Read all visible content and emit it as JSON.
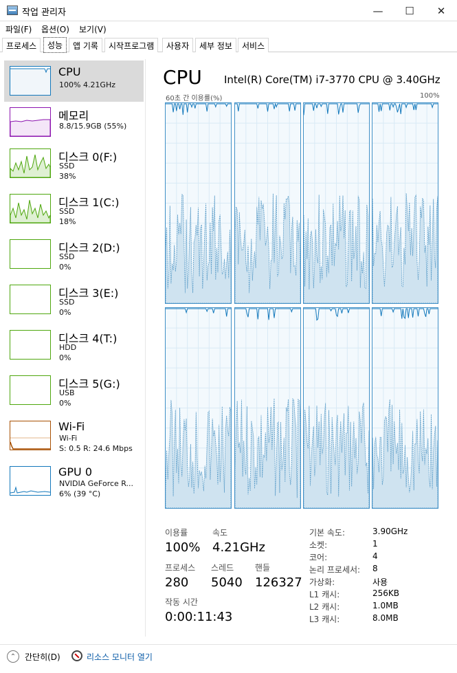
{
  "window": {
    "title": "작업 관리자"
  },
  "menu": [
    "파일(F)",
    "옵션(O)",
    "보기(V)"
  ],
  "tabs": [
    "프로세스",
    "성능",
    "앱 기록",
    "시작프로그램",
    "사용자",
    "세부 정보",
    "서비스"
  ],
  "active_tab": "성능",
  "sidebar": {
    "cpu": {
      "title": "CPU",
      "sub1": "100%  4.21GHz"
    },
    "memory": {
      "title": "메모리",
      "sub1": "8.8/15.9GB (55%)"
    },
    "disk0": {
      "title": "디스크 0(F:)",
      "sub1": "SSD",
      "sub2": "38%"
    },
    "disk1": {
      "title": "디스크 1(C:)",
      "sub1": "SSD",
      "sub2": "18%"
    },
    "disk2": {
      "title": "디스크 2(D:)",
      "sub1": "SSD",
      "sub2": "0%"
    },
    "disk3": {
      "title": "디스크 3(E:)",
      "sub1": "SSD",
      "sub2": "0%"
    },
    "disk4": {
      "title": "디스크 4(T:)",
      "sub1": "HDD",
      "sub2": "0%"
    },
    "disk5": {
      "title": "디스크 5(G:)",
      "sub1": "USB",
      "sub2": "0%"
    },
    "wifi": {
      "title": "Wi-Fi",
      "sub1": "Wi-Fi",
      "sub2": "S: 0.5  R: 24.6 Mbps"
    },
    "gpu": {
      "title": "GPU 0",
      "sub1": "NVIDIA GeForce R...",
      "sub2": "6% (39 °C)"
    }
  },
  "main": {
    "heading": "CPU",
    "model": "Intel(R) Core(TM) i7-3770 CPU @ 3.40GHz",
    "graph_caption": "60초 간 이용률(%)",
    "graph_max": "100%"
  },
  "stats": {
    "utilization_label": "이용률",
    "utilization": "100%",
    "speed_label": "속도",
    "speed": "4.21GHz",
    "processes_label": "프로세스",
    "processes": "280",
    "threads_label": "스레드",
    "threads": "5040",
    "handles_label": "핸들",
    "handles": "126327",
    "uptime_label": "작동 시간",
    "uptime": "0:00:11:43"
  },
  "specs": [
    {
      "key": "기본 속도:",
      "value": "3.90GHz"
    },
    {
      "key": "소켓:",
      "value": "1"
    },
    {
      "key": "코어:",
      "value": "4"
    },
    {
      "key": "논리 프로세서:",
      "value": "8"
    },
    {
      "key": "가상화:",
      "value": "사용"
    },
    {
      "key": "L1 캐시:",
      "value": "256KB"
    },
    {
      "key": "L2 캐시:",
      "value": "1.0MB"
    },
    {
      "key": "L3 캐시:",
      "value": "8.0MB"
    }
  ],
  "footer": {
    "collapse": "간단히(D)",
    "resource_monitor": "리소스 모니터 열기"
  },
  "colors": {
    "cpu": "#1177bb",
    "memory": "#8b12ae",
    "disk": "#4da60c",
    "wifi": "#a74f01",
    "gpu": "#1177bb"
  }
}
